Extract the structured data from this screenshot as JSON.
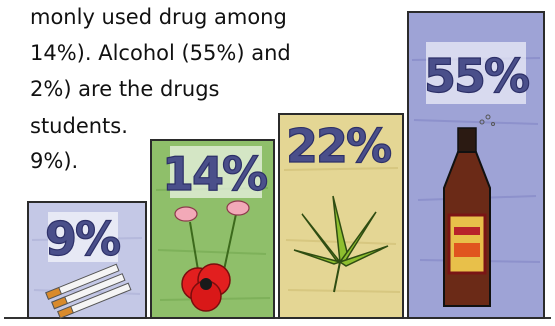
{
  "text": {
    "line1": "monly used drug among",
    "line2": " 14%). Alcohol (55%) and",
    "line3": "2%) are the drugs",
    "line4": " students.",
    "line5": "9%)."
  },
  "chart_data": {
    "type": "bar",
    "categories": [
      "Tobacco",
      "Poppy",
      "Cannabis",
      "Alcohol"
    ],
    "values": [
      9,
      14,
      22,
      55
    ],
    "value_labels": [
      "9%",
      "14%",
      "22%",
      "55%"
    ],
    "bar_colors": [
      "#c4c8e6",
      "#8fbf6a",
      "#e4d694",
      "#9ea3d6"
    ],
    "title": "",
    "xlabel": "",
    "ylabel": ""
  }
}
